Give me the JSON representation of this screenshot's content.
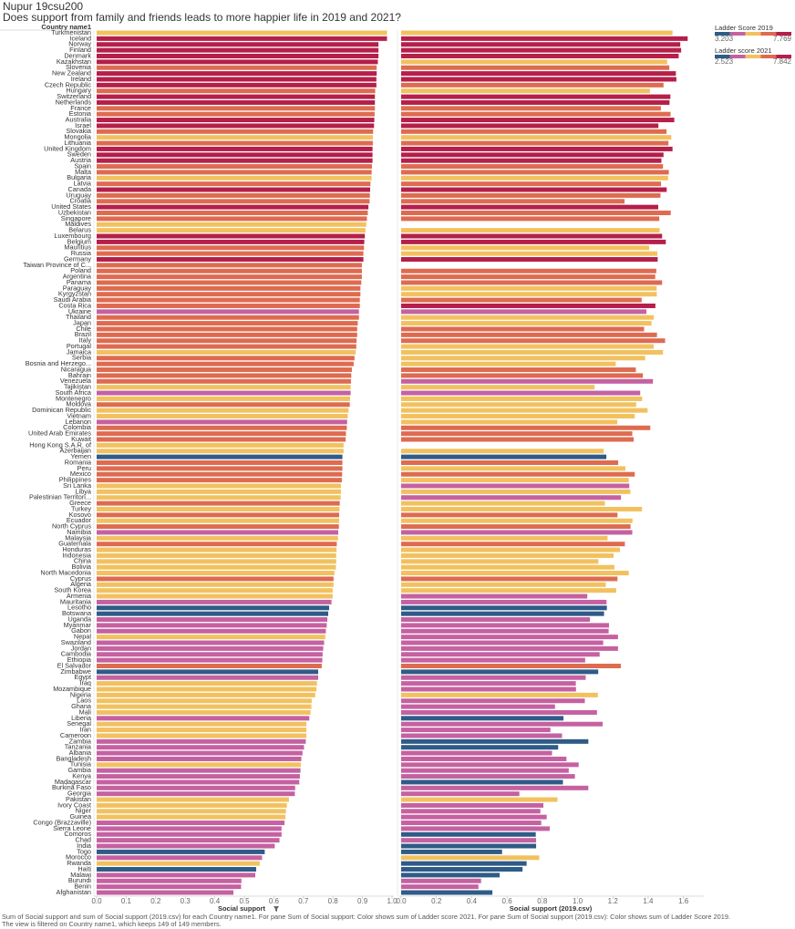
{
  "chart_data": {
    "type": "bar",
    "orientation": "horizontal",
    "title": "Nupur 19csu200",
    "subtitle": "Does support from family and friends leads to more happier life in 2019 and 2021?",
    "category_header": "Country name1",
    "caption": [
      "Sum of Social support and sum of Social support (2019.csv) for each Country name1.  For pane Sum of Social support:  Color shows sum of Ladder score 2021.  For pane Sum of Social support (2019.csv):  Color shows sum of Ladder Score 2019.",
      "The view is filtered on Country name1, which keeps 149 of 149 members."
    ],
    "categories": [
      "Turkmenistan",
      "Iceland",
      "Norway",
      "Finland",
      "Denmark",
      "Kazakhstan",
      "Slovenia",
      "New Zealand",
      "Ireland",
      "Czech Republic",
      "Hungary",
      "Switzerland",
      "Netherlands",
      "France",
      "Estonia",
      "Australia",
      "Israel",
      "Slovakia",
      "Mongolia",
      "Lithuania",
      "United Kingdom",
      "Sweden",
      "Austria",
      "Spain",
      "Malta",
      "Bulgaria",
      "Latvia",
      "Canada",
      "Uruguay",
      "Croatia",
      "United States",
      "Uzbekistan",
      "Singapore",
      "Maldives",
      "Belarus",
      "Luxembourg",
      "Belgium",
      "Mauritius",
      "Russia",
      "Germany",
      "Taiwan Province of C...",
      "Poland",
      "Argentina",
      "Panama",
      "Paraguay",
      "Kyrgyzstan",
      "Saudi Arabia",
      "Costa Rica",
      "Ukraine",
      "Thailand",
      "Japan",
      "Chile",
      "Brazil",
      "Italy",
      "Portugal",
      "Jamaica",
      "Serbia",
      "Bosnia and Herzego...",
      "Nicaragua",
      "Bahrain",
      "Venezuela",
      "Tajikistan",
      "South Africa",
      "Montenegro",
      "Moldova",
      "Dominican Republic",
      "Vietnam",
      "Lebanon",
      "Colombia",
      "United Arab Emirates",
      "Kuwait",
      "Hong Kong S.A.R. of",
      "Azerbaijan",
      "Yemen",
      "Romania",
      "Peru",
      "Mexico",
      "Philippines",
      "Sri Lanka",
      "Libya",
      "Palestinian Territori...",
      "Greece",
      "Turkey",
      "Kosovo",
      "Ecuador",
      "North Cyprus",
      "Namibia",
      "Malaysia",
      "Guatemala",
      "Honduras",
      "Indonesia",
      "China",
      "Bolivia",
      "North Macedonia",
      "Cyprus",
      "Algeria",
      "South Korea",
      "Armenia",
      "Mauritania",
      "Lesotho",
      "Botswana",
      "Uganda",
      "Myanmar",
      "Gabon",
      "Nepal",
      "Swaziland",
      "Jordan",
      "Cambodia",
      "Ethiopia",
      "El Salvador",
      "Zimbabwe",
      "Egypt",
      "Iraq",
      "Mozambique",
      "Nigeria",
      "Laos",
      "Ghana",
      "Mali",
      "Liberia",
      "Senegal",
      "Iran",
      "Cameroon",
      "Zambia",
      "Tanzania",
      "Albania",
      "Bangladesh",
      "Tunisia",
      "Gambia",
      "Kenya",
      "Madagascar",
      "Burkina Faso",
      "Georgia",
      "Pakistan",
      "Ivory Coast",
      "Niger",
      "Guinea",
      "Congo (Brazzaville)",
      "Sierra Leone",
      "Comoros",
      "Chad",
      "India",
      "Togo",
      "Morocco",
      "Rwanda",
      "Haiti",
      "Malawi",
      "Burundi",
      "Benin",
      "Afghanistan"
    ],
    "series": [
      {
        "name": "Social support",
        "xlim": [
          0,
          1.0
        ],
        "xticks": [
          {
            "value": 0,
            "label": "0.0"
          },
          0.1,
          0.2,
          0.3,
          0.4,
          0.5,
          0.6,
          0.7,
          0.8,
          0.9,
          {
            "value": 1,
            "label": "1.0"
          }
        ],
        "values": [
          0.983,
          0.983,
          0.954,
          0.954,
          0.954,
          0.952,
          0.948,
          0.948,
          0.947,
          0.947,
          0.943,
          0.942,
          0.942,
          0.942,
          0.941,
          0.94,
          0.939,
          0.936,
          0.935,
          0.935,
          0.934,
          0.934,
          0.934,
          0.932,
          0.931,
          0.931,
          0.927,
          0.926,
          0.925,
          0.924,
          0.92,
          0.918,
          0.915,
          0.913,
          0.91,
          0.908,
          0.906,
          0.905,
          0.903,
          0.903,
          0.898,
          0.898,
          0.898,
          0.896,
          0.893,
          0.893,
          0.891,
          0.891,
          0.888,
          0.888,
          0.884,
          0.882,
          0.882,
          0.88,
          0.879,
          0.877,
          0.873,
          0.87,
          0.864,
          0.862,
          0.861,
          0.86,
          0.86,
          0.858,
          0.857,
          0.853,
          0.85,
          0.848,
          0.847,
          0.844,
          0.843,
          0.836,
          0.836,
          0.832,
          0.832,
          0.832,
          0.831,
          0.83,
          0.827,
          0.827,
          0.826,
          0.823,
          0.822,
          0.821,
          0.821,
          0.82,
          0.818,
          0.817,
          0.813,
          0.812,
          0.811,
          0.811,
          0.81,
          0.805,
          0.802,
          0.802,
          0.799,
          0.799,
          0.795,
          0.787,
          0.784,
          0.781,
          0.779,
          0.776,
          0.774,
          0.77,
          0.767,
          0.765,
          0.764,
          0.762,
          0.75,
          0.75,
          0.746,
          0.744,
          0.74,
          0.728,
          0.727,
          0.724,
          0.72,
          0.71,
          0.71,
          0.71,
          0.708,
          0.702,
          0.697,
          0.693,
          0.691,
          0.69,
          0.688,
          0.686,
          0.672,
          0.671,
          0.651,
          0.644,
          0.641,
          0.639,
          0.636,
          0.626,
          0.626,
          0.619,
          0.603,
          0.569,
          0.56,
          0.552,
          0.54,
          0.537,
          0.49,
          0.489,
          0.463
        ],
        "colors": [
          "#f2c15f",
          "#b51f4a",
          "#b51f4a",
          "#b51f4a",
          "#b51f4a",
          "#b51f4a",
          "#de6b50",
          "#b51f4a",
          "#b51f4a",
          "#b51f4a",
          "#de6b50",
          "#b51f4a",
          "#b51f4a",
          "#de6b50",
          "#de6b50",
          "#b51f4a",
          "#b51f4a",
          "#de6b50",
          "#f2c15f",
          "#de6b50",
          "#b51f4a",
          "#b51f4a",
          "#b51f4a",
          "#de6b50",
          "#de6b50",
          "#f2c15f",
          "#de6b50",
          "#b51f4a",
          "#de6b50",
          "#de6b50",
          "#b51f4a",
          "#de6b50",
          "#de6b50",
          "#f2c15f",
          "#f2c15f",
          "#b51f4a",
          "#b51f4a",
          "#de6b50",
          "#de6b50",
          "#b51f4a",
          "#de6b50",
          "#de6b50",
          "#de6b50",
          "#de6b50",
          "#de6b50",
          "#de6b50",
          "#de6b50",
          "#de6b50",
          "#c561a1",
          "#de6b50",
          "#de6b50",
          "#de6b50",
          "#de6b50",
          "#de6b50",
          "#de6b50",
          "#f2c15f",
          "#de6b50",
          "#de6b50",
          "#de6b50",
          "#de6b50",
          "#de6b50",
          "#f2c15f",
          "#c561a1",
          "#f2c15f",
          "#de6b50",
          "#f2c15f",
          "#f2c15f",
          "#c561a1",
          "#de6b50",
          "#de6b50",
          "#de6b50",
          "#f2c15f",
          "#f2c15f",
          "#2f5b87",
          "#de6b50",
          "#de6b50",
          "#de6b50",
          "#de6b50",
          "#f2c15f",
          "#f2c15f",
          "#f2c15f",
          "#de6b50",
          "#f2c15f",
          "#de6b50",
          "#f2c15f",
          "#de6b50",
          "#c561a1",
          "#f2c15f",
          "#de6b50",
          "#f2c15f",
          "#f2c15f",
          "#f2c15f",
          "#f2c15f",
          "#f2c15f",
          "#de6b50",
          "#f2c15f",
          "#f2c15f",
          "#f2c15f",
          "#c561a1",
          "#2f5b87",
          "#2f5b87",
          "#c561a1",
          "#c561a1",
          "#c561a1",
          "#f2c15f",
          "#c561a1",
          "#c561a1",
          "#c561a1",
          "#c561a1",
          "#de6b50",
          "#2f5b87",
          "#c561a1",
          "#f2c15f",
          "#f2c15f",
          "#f2c15f",
          "#f2c15f",
          "#f2c15f",
          "#f2c15f",
          "#c561a1",
          "#f2c15f",
          "#f2c15f",
          "#f2c15f",
          "#c561a1",
          "#c561a1",
          "#c561a1",
          "#c561a1",
          "#f2c15f",
          "#c561a1",
          "#c561a1",
          "#c561a1",
          "#c561a1",
          "#c561a1",
          "#f2c15f",
          "#f2c15f",
          "#f2c15f",
          "#f2c15f",
          "#c561a1",
          "#c561a1",
          "#c561a1",
          "#c561a1",
          "#c561a1",
          "#2f5b87",
          "#c561a1",
          "#f2c15f",
          "#2f5b87",
          "#c561a1",
          "#c561a1",
          "#c561a1",
          "#c561a1",
          "#c561a1",
          "#2f5b87"
        ]
      },
      {
        "name": "Social support (2019.csv)",
        "xlim": [
          0,
          1.7
        ],
        "xticks": [
          {
            "value": 0,
            "label": "0.0"
          },
          0.2,
          0.4,
          0.6,
          0.8,
          {
            "value": 1,
            "label": "1.0"
          },
          1.2,
          1.4,
          1.6
        ],
        "values": [
          1.538,
          1.624,
          1.582,
          1.587,
          1.573,
          1.508,
          1.52,
          1.557,
          1.56,
          1.487,
          1.41,
          1.526,
          1.521,
          1.472,
          1.527,
          1.548,
          1.458,
          1.504,
          1.531,
          1.515,
          1.538,
          1.487,
          1.475,
          1.484,
          1.517,
          1.513,
          1.473,
          1.505,
          1.47,
          1.266,
          1.457,
          1.528,
          1.463,
          null,
          1.465,
          1.479,
          1.5,
          1.406,
          1.452,
          1.454,
          null,
          1.446,
          1.44,
          1.479,
          1.448,
          1.449,
          1.363,
          1.441,
          1.39,
          1.432,
          1.419,
          1.377,
          1.45,
          1.496,
          1.431,
          1.484,
          1.383,
          1.216,
          1.33,
          1.37,
          1.427,
          1.096,
          1.355,
          1.366,
          1.332,
          1.397,
          1.324,
          1.225,
          1.412,
          1.31,
          1.318,
          null,
          1.148,
          1.163,
          1.23,
          1.271,
          1.324,
          1.29,
          1.293,
          1.299,
          1.246,
          1.155,
          1.365,
          1.226,
          1.311,
          1.3,
          1.31,
          1.17,
          1.268,
          1.24,
          1.204,
          1.118,
          1.209,
          1.29,
          1.226,
          1.16,
          1.219,
          1.055,
          1.164,
          1.166,
          1.15,
          1.07,
          1.178,
          1.176,
          1.229,
          1.145,
          1.229,
          1.125,
          1.043,
          1.245,
          1.117,
          1.046,
          0.99,
          0.991,
          1.115,
          1.041,
          0.872,
          1.11,
          0.92,
          1.142,
          0.846,
          0.912,
          1.061,
          0.89,
          0.855,
          0.937,
          1.006,
          0.95,
          0.985,
          0.917,
          1.061,
          0.67,
          0.886,
          0.806,
          0.789,
          0.825,
          0.794,
          0.842,
          0.763,
          0.765,
          0.765,
          0.572,
          0.783,
          0.711,
          0.688,
          0.558,
          0.453,
          0.438,
          0.517
        ],
        "colors": [
          "#f2c15f",
          "#b51f4a",
          "#b51f4a",
          "#b51f4a",
          "#b51f4a",
          "#f2c15f",
          "#de6b50",
          "#b51f4a",
          "#b51f4a",
          "#de6b50",
          "#f2c15f",
          "#b51f4a",
          "#b51f4a",
          "#de6b50",
          "#de6b50",
          "#b51f4a",
          "#b51f4a",
          "#de6b50",
          "#f2c15f",
          "#de6b50",
          "#b51f4a",
          "#b51f4a",
          "#b51f4a",
          "#de6b50",
          "#de6b50",
          "#f2c15f",
          "#de6b50",
          "#b51f4a",
          "#de6b50",
          "#de6b50",
          "#b51f4a",
          "#de6b50",
          "#de6b50",
          null,
          "#f2c15f",
          "#b51f4a",
          "#b51f4a",
          "#f2c15f",
          "#f2c15f",
          "#b51f4a",
          null,
          "#de6b50",
          "#de6b50",
          "#de6b50",
          "#f2c15f",
          "#f2c15f",
          "#de6b50",
          "#b51f4a",
          "#c561a1",
          "#f2c15f",
          "#f2c15f",
          "#de6b50",
          "#de6b50",
          "#de6b50",
          "#f2c15f",
          "#f2c15f",
          "#f2c15f",
          "#f2c15f",
          "#de6b50",
          "#de6b50",
          "#c561a1",
          "#f2c15f",
          "#c561a1",
          "#f2c15f",
          "#f2c15f",
          "#f2c15f",
          "#f2c15f",
          "#f2c15f",
          "#de6b50",
          "#de6b50",
          "#de6b50",
          null,
          "#f2c15f",
          "#2f5b87",
          "#de6b50",
          "#f2c15f",
          "#de6b50",
          "#f2c15f",
          "#c561a1",
          "#f2c15f",
          "#c561a1",
          "#f2c15f",
          "#f2c15f",
          "#de6b50",
          "#f2c15f",
          "#de6b50",
          "#c561a1",
          "#f2c15f",
          "#de6b50",
          "#f2c15f",
          "#f2c15f",
          "#f2c15f",
          "#f2c15f",
          "#f2c15f",
          "#de6b50",
          "#f2c15f",
          "#f2c15f",
          "#c561a1",
          "#c561a1",
          "#2f5b87",
          "#2f5b87",
          "#c561a1",
          "#c561a1",
          "#c561a1",
          "#c561a1",
          "#c561a1",
          "#c561a1",
          "#c561a1",
          "#c561a1",
          "#de6b50",
          "#2f5b87",
          "#c561a1",
          "#c561a1",
          "#c561a1",
          "#f2c15f",
          "#c561a1",
          "#c561a1",
          "#c561a1",
          "#2f5b87",
          "#c561a1",
          "#c561a1",
          "#c561a1",
          "#2f5b87",
          "#2f5b87",
          "#c561a1",
          "#c561a1",
          "#c561a1",
          "#c561a1",
          "#c561a1",
          "#2f5b87",
          "#c561a1",
          "#c561a1",
          "#f2c15f",
          "#c561a1",
          "#c561a1",
          "#c561a1",
          "#c561a1",
          "#c561a1",
          "#2f5b87",
          "#c561a1",
          "#2f5b87",
          "#2f5b87",
          "#f2c15f",
          "#2f5b87",
          "#2f5b87",
          "#2f5b87",
          "#c561a1",
          "#c561a1",
          "#2f5b87"
        ]
      }
    ],
    "color_legends": [
      {
        "title": "Ladder Score 2019",
        "min": 3.203,
        "max": 7.769,
        "colors": [
          "#2f5b87",
          "#c561a1",
          "#f2c15f",
          "#de6b50",
          "#b51f4a"
        ]
      },
      {
        "title": "Ladder score 2021",
        "min": 2.523,
        "max": 7.842,
        "colors": [
          "#2f5b87",
          "#c561a1",
          "#f2c15f",
          "#de6b50",
          "#b51f4a"
        ]
      }
    ]
  }
}
